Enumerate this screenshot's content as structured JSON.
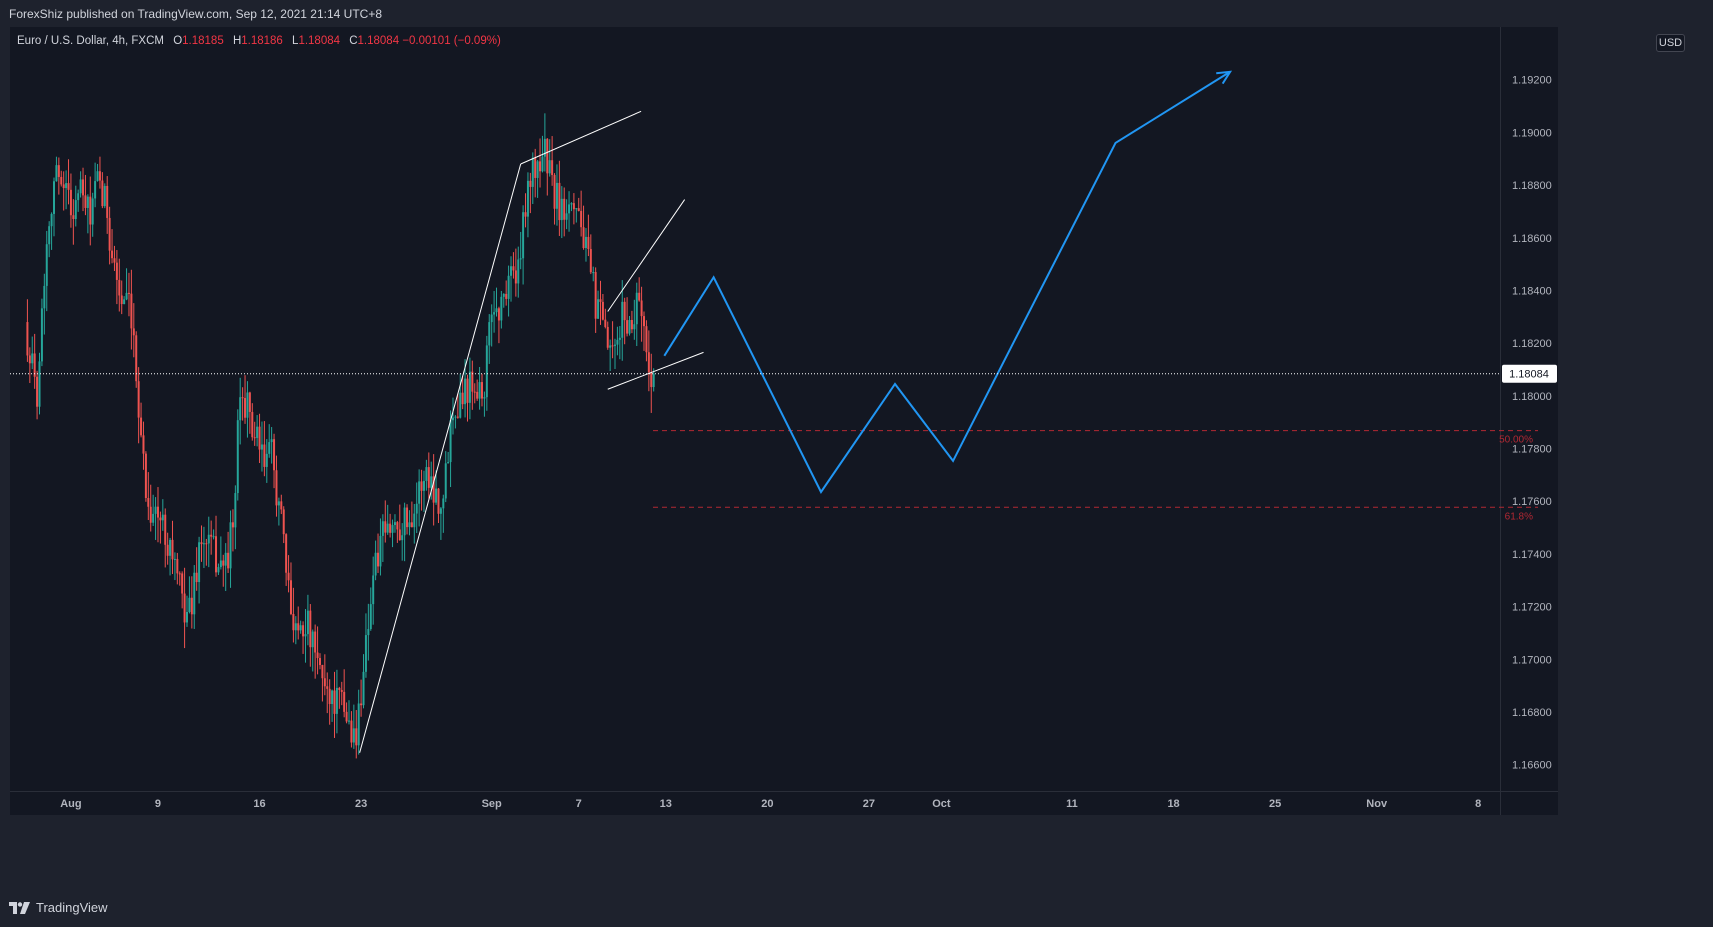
{
  "header": {
    "published_text": "ForexShiz published on TradingView.com, Sep 12, 2021 21:14 UTC+8"
  },
  "legend": {
    "symbol": "Euro / U.S. Dollar, 4h, FXCM",
    "open_label": "O",
    "open": "1.18185",
    "high_label": "H",
    "high": "1.18186",
    "low_label": "L",
    "low": "1.18084",
    "close_label": "C",
    "close": "1.18084",
    "change": "−0.00101 (−0.09%)"
  },
  "currency": "USD",
  "footer": {
    "brand": "TradingView"
  },
  "colors": {
    "background": "#131722",
    "frame": "#1e222d",
    "up": "#26a69a",
    "down": "#ef5350",
    "projection": "#2196f3",
    "trendline": "#ffffff",
    "fib": "#b22833",
    "price_line": "#ffffff"
  },
  "chart_data": {
    "type": "candlestick",
    "symbol": "EURUSD",
    "timeframe": "4h",
    "ylim": [
      1.165,
      1.194
    ],
    "y_ticks": [
      "1.19200",
      "1.19000",
      "1.18800",
      "1.18600",
      "1.18400",
      "1.18200",
      "1.18000",
      "1.17800",
      "1.17600",
      "1.17400",
      "1.17200",
      "1.17000",
      "1.16800",
      "1.16600"
    ],
    "x_ticks": [
      {
        "label": "Aug",
        "t": 3.0
      },
      {
        "label": "9",
        "t": 9.0
      },
      {
        "label": "16",
        "t": 16.0
      },
      {
        "label": "23",
        "t": 23.0
      },
      {
        "label": "Sep",
        "t": 32.0
      },
      {
        "label": "7",
        "t": 38.0
      },
      {
        "label": "13",
        "t": 44.0
      },
      {
        "label": "20",
        "t": 51.0
      },
      {
        "label": "27",
        "t": 58.0
      },
      {
        "label": "Oct",
        "t": 63.0
      },
      {
        "label": "11",
        "t": 72.0
      },
      {
        "label": "18",
        "t": 79.0
      },
      {
        "label": "25",
        "t": 86.0
      },
      {
        "label": "Nov",
        "t": 93.0
      },
      {
        "label": "8",
        "t": 100.0
      }
    ],
    "xlim": [
      -1.2,
      101.5
    ],
    "last_price": "1.18084",
    "last_price_value": 1.18084,
    "price_anchors": [
      [
        0.0,
        1.1828
      ],
      [
        0.8,
        1.18
      ],
      [
        1.5,
        1.186
      ],
      [
        2.0,
        1.1882
      ],
      [
        2.6,
        1.1885
      ],
      [
        3.2,
        1.187
      ],
      [
        3.8,
        1.1878
      ],
      [
        4.4,
        1.1868
      ],
      [
        5.0,
        1.188
      ],
      [
        5.6,
        1.1872
      ],
      [
        6.0,
        1.1855
      ],
      [
        6.6,
        1.1836
      ],
      [
        7.2,
        1.1832
      ],
      [
        7.8,
        1.18
      ],
      [
        8.4,
        1.176
      ],
      [
        9.0,
        1.1755
      ],
      [
        9.6,
        1.175
      ],
      [
        10.2,
        1.174
      ],
      [
        10.8,
        1.1722
      ],
      [
        11.4,
        1.1718
      ],
      [
        12.0,
        1.1742
      ],
      [
        12.6,
        1.1745
      ],
      [
        13.2,
        1.1738
      ],
      [
        13.8,
        1.1735
      ],
      [
        14.4,
        1.1752
      ],
      [
        14.8,
        1.18
      ],
      [
        15.2,
        1.1798
      ],
      [
        15.8,
        1.1785
      ],
      [
        16.4,
        1.1775
      ],
      [
        17.0,
        1.1778
      ],
      [
        17.6,
        1.1755
      ],
      [
        18.2,
        1.1722
      ],
      [
        18.8,
        1.1712
      ],
      [
        19.4,
        1.1715
      ],
      [
        20.0,
        1.17
      ],
      [
        20.6,
        1.1692
      ],
      [
        21.2,
        1.1685
      ],
      [
        21.8,
        1.1683
      ],
      [
        22.4,
        1.1675
      ],
      [
        22.8,
        1.1668
      ],
      [
        23.4,
        1.1702
      ],
      [
        24.0,
        1.1732
      ],
      [
        24.6,
        1.1745
      ],
      [
        25.2,
        1.175
      ],
      [
        25.8,
        1.1752
      ],
      [
        26.4,
        1.1753
      ],
      [
        27.0,
        1.176
      ],
      [
        27.6,
        1.1772
      ],
      [
        28.2,
        1.1765
      ],
      [
        28.8,
        1.1758
      ],
      [
        29.4,
        1.1795
      ],
      [
        30.0,
        1.18
      ],
      [
        30.6,
        1.1805
      ],
      [
        31.0,
        1.1807
      ],
      [
        31.6,
        1.18
      ],
      [
        32.2,
        1.1835
      ],
      [
        32.8,
        1.1832
      ],
      [
        33.4,
        1.1848
      ],
      [
        34.0,
        1.1845
      ],
      [
        34.6,
        1.188
      ],
      [
        35.2,
        1.1886
      ],
      [
        35.8,
        1.1894
      ],
      [
        36.4,
        1.1878
      ],
      [
        37.0,
        1.187
      ],
      [
        37.6,
        1.1878
      ],
      [
        38.2,
        1.187
      ],
      [
        38.8,
        1.185
      ],
      [
        39.4,
        1.1834
      ],
      [
        40.0,
        1.1822
      ],
      [
        40.6,
        1.1812
      ],
      [
        41.2,
        1.1832
      ],
      [
        41.8,
        1.1825
      ],
      [
        42.3,
        1.1842
      ],
      [
        42.9,
        1.1812
      ],
      [
        43.3,
        1.18084
      ]
    ],
    "fib_levels": [
      {
        "label": "50.00%",
        "value": 1.17868
      },
      {
        "label": "61.8%",
        "value": 1.17577
      }
    ],
    "trendlines": [
      {
        "name": "support-trendline",
        "points": [
          [
            22.9,
            1.16645
          ],
          [
            34.0,
            1.1888
          ]
        ]
      },
      {
        "name": "support-trendline-extension",
        "points": [
          [
            34.0,
            1.1888
          ],
          [
            42.3,
            1.1908
          ]
        ]
      },
      {
        "name": "wedge-upper",
        "points": [
          [
            40.0,
            1.1832
          ],
          [
            45.3,
            1.18745
          ]
        ]
      },
      {
        "name": "wedge-lower",
        "points": [
          [
            40.0,
            1.18025
          ],
          [
            46.6,
            1.18165
          ]
        ]
      }
    ],
    "projection_path": [
      [
        43.9,
        1.18152
      ],
      [
        47.3,
        1.1845
      ],
      [
        54.7,
        1.17635
      ],
      [
        59.8,
        1.18045
      ],
      [
        63.8,
        1.17753
      ],
      [
        75.0,
        1.1896
      ],
      [
        82.9,
        1.1923
      ]
    ]
  }
}
